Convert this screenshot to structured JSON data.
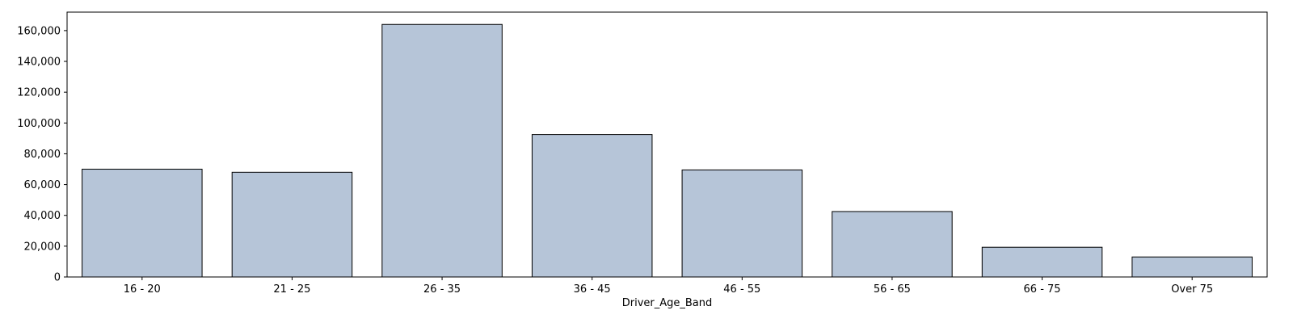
{
  "chart_data": {
    "type": "bar",
    "xlabel": "Driver_Age_Band",
    "ylabel": "",
    "categories": [
      "16 - 20",
      "21 - 25",
      "26 - 35",
      "36 - 45",
      "46 - 55",
      "56 - 65",
      "66 - 75",
      "Over 75"
    ],
    "values": [
      70000,
      68000,
      164000,
      92500,
      69500,
      42500,
      19300,
      13000
    ],
    "ylim": [
      0,
      172000
    ],
    "yticks": [
      0,
      20000,
      40000,
      60000,
      80000,
      100000,
      120000,
      140000,
      160000
    ],
    "ytick_labels": [
      "0",
      "20,000",
      "40,000",
      "60,000",
      "80,000",
      "100,000",
      "120,000",
      "140,000",
      "160,000"
    ],
    "grid": false,
    "legend": "none",
    "colors": {
      "bar_fill": "#b6c5d8",
      "bar_edge": "#000000",
      "axis": "#000000"
    }
  }
}
